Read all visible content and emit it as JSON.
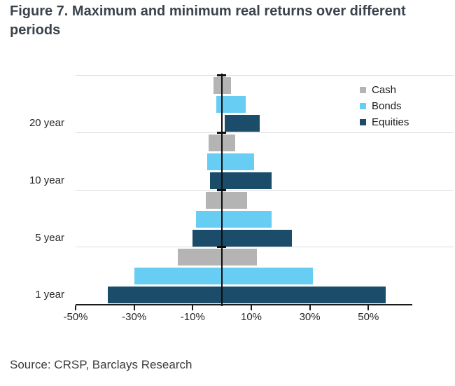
{
  "title": "Figure 7. Maximum and minimum real returns over different periods",
  "source": "Source: CRSP, Barclays Research",
  "chart_data": {
    "type": "bar",
    "variant": "horizontal floating range bars (minimum to maximum real return per holding period)",
    "title": "Figure 7. Maximum and minimum real returns over different periods",
    "categories": [
      "20 year",
      "10 year",
      "5 year",
      "1 year"
    ],
    "unit": "percent real return",
    "series": [
      {
        "name": "Cash",
        "color": "#b4b4b4",
        "ranges_min_max_pct": [
          [
            -3,
            3
          ],
          [
            -4.5,
            4.5
          ],
          [
            -5.5,
            8.5
          ],
          [
            -15,
            12
          ]
        ]
      },
      {
        "name": "Bonds",
        "color": "#67cdf2",
        "ranges_min_max_pct": [
          [
            -2,
            8
          ],
          [
            -5,
            11
          ],
          [
            -9,
            17
          ],
          [
            -30,
            31
          ]
        ]
      },
      {
        "name": "Equities",
        "color": "#1b4d6b",
        "ranges_min_max_pct": [
          [
            1,
            13
          ],
          [
            -4,
            17
          ],
          [
            -10,
            24
          ],
          [
            -39,
            56
          ]
        ]
      }
    ],
    "xlim": [
      -50,
      65
    ],
    "xticks": [
      -50,
      -30,
      -10,
      10,
      30,
      50
    ],
    "xtick_labels": [
      "-50%",
      "-30%",
      "-10%",
      "10%",
      "30%",
      "50%"
    ],
    "legend_position": "top-right",
    "legend_items": [
      "Cash",
      "Bonds",
      "Equities"
    ],
    "zero_line": true,
    "grid": "horizontal separator line above each period group"
  },
  "colors": {
    "title_text": "#3a434d",
    "axis_text": "#262626",
    "grid_line": "#dbdbdb",
    "zero_line": "#0d0d0d",
    "source_text": "#3b3b3b"
  }
}
